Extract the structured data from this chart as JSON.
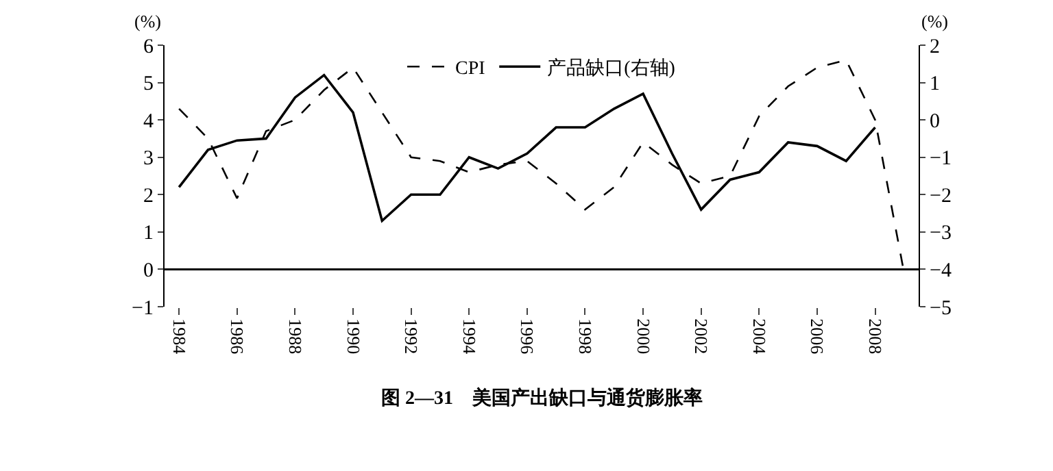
{
  "chart_data": {
    "type": "line",
    "title": "图 2—31　美国产出缺口与通货膨胀率",
    "ylabel": "(%)",
    "y2label": "(%)",
    "x": [
      1984,
      1985,
      1986,
      1987,
      1988,
      1989,
      1990,
      1991,
      1992,
      1993,
      1994,
      1995,
      1996,
      1997,
      1998,
      1999,
      2000,
      2001,
      2002,
      2003,
      2004,
      2005,
      2006,
      2007,
      2008,
      2009
    ],
    "series": [
      {
        "name": "CPI",
        "color": "#000000",
        "line_style": "dashed",
        "values": [
          4.3,
          3.5,
          1.9,
          3.7,
          4.0,
          4.8,
          5.4,
          4.2,
          3.0,
          2.9,
          2.6,
          2.8,
          2.9,
          2.3,
          1.6,
          2.2,
          3.4,
          2.8,
          2.3,
          2.5,
          4.1,
          4.9,
          5.4,
          5.6,
          4.0,
          -0.1
        ]
      },
      {
        "name": "产品缺口(右轴)",
        "color": "#000000",
        "line_style": "solid",
        "axis": "y2",
        "values": [
          -1.8,
          -0.8,
          -0.55,
          -0.5,
          0.6,
          1.2,
          0.2,
          -2.7,
          -2.0,
          -2.0,
          -1.0,
          -1.3,
          -0.9,
          -0.2,
          -0.2,
          0.3,
          0.7,
          -0.9,
          -2.4,
          -1.6,
          -1.4,
          -0.6,
          -0.7,
          -1.1,
          -0.2,
          null
        ]
      }
    ],
    "xlim": [
      1983.5,
      2009.5
    ],
    "xticks": [
      1984,
      1986,
      1988,
      1990,
      1992,
      1994,
      1996,
      1998,
      2000,
      2002,
      2004,
      2006,
      2008
    ],
    "ylim": [
      -1,
      6
    ],
    "yticks": [
      {
        "value": -1,
        "label": "−1"
      },
      0,
      1,
      2,
      3,
      4,
      5,
      6
    ],
    "y2lim": [
      -5,
      2
    ],
    "y2ticks": [
      {
        "value": -5,
        "label": "−5"
      },
      {
        "value": -4,
        "label": "−4"
      },
      {
        "value": -3,
        "label": "−3"
      },
      {
        "value": -2,
        "label": "−2"
      },
      {
        "value": -1,
        "label": "−1"
      },
      0,
      1,
      2
    ],
    "ref_lines": [
      {
        "axis": "y",
        "value": 0,
        "color": "#000000"
      }
    ],
    "legend": "top",
    "marker": "none"
  }
}
